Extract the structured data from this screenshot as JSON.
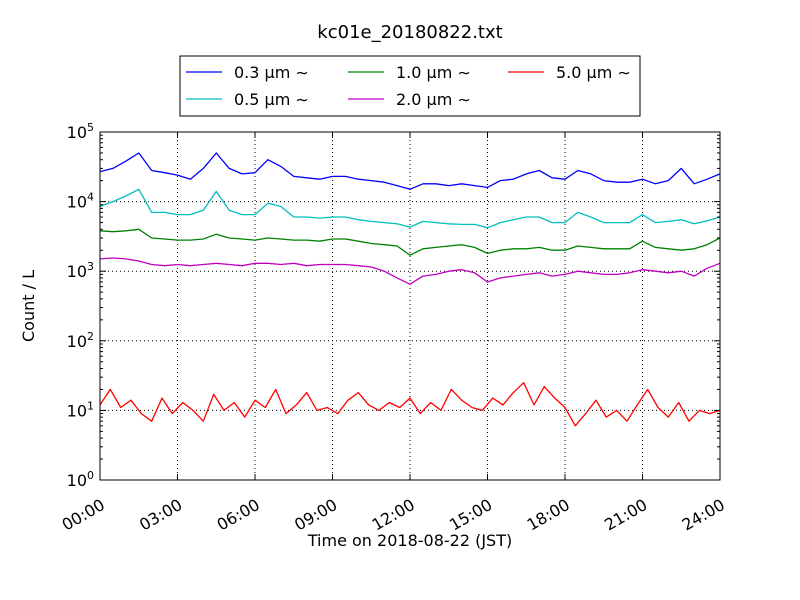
{
  "chart_data": {
    "type": "line",
    "title": "kc01e_20180822.txt",
    "xlabel": "Time on 2018-08-22 (JST)",
    "ylabel": "Count / L",
    "x_ticks": [
      "00:00",
      "03:00",
      "06:00",
      "09:00",
      "12:00",
      "15:00",
      "18:00",
      "21:00",
      "24:00"
    ],
    "x_range_hours": [
      0,
      24
    ],
    "y_scale": "log",
    "y_range": [
      1,
      100000
    ],
    "y_ticks": [
      {
        "base": "10",
        "exp": "0",
        "value": 1
      },
      {
        "base": "10",
        "exp": "1",
        "value": 10
      },
      {
        "base": "10",
        "exp": "2",
        "value": 100
      },
      {
        "base": "10",
        "exp": "3",
        "value": 1000
      },
      {
        "base": "10",
        "exp": "4",
        "value": 10000
      },
      {
        "base": "10",
        "exp": "5",
        "value": 100000
      }
    ],
    "grid": true,
    "legend_placement": "top-center, above plot",
    "series": [
      {
        "name": "0.3 μm ∼",
        "color": "#0000ff",
        "times_h": [
          0.0,
          0.5,
          1.0,
          1.5,
          2.0,
          2.5,
          3.0,
          3.5,
          4.0,
          4.5,
          5.0,
          5.5,
          6.0,
          6.5,
          7.0,
          7.5,
          8.0,
          8.5,
          9.0,
          9.5,
          10.0,
          10.5,
          11.0,
          11.5,
          12.0,
          12.5,
          13.0,
          13.5,
          14.0,
          14.5,
          15.0,
          15.5,
          16.0,
          16.5,
          17.0,
          17.5,
          18.0,
          18.5,
          19.0,
          19.5,
          20.0,
          20.5,
          21.0,
          21.5,
          22.0,
          22.5,
          23.0,
          23.5,
          24.0
        ],
        "values": [
          27000,
          30000,
          38000,
          50000,
          28000,
          26000,
          24000,
          21000,
          30000,
          50000,
          30000,
          25000,
          26000,
          40000,
          32000,
          23000,
          22000,
          21000,
          23000,
          23000,
          21000,
          20000,
          19000,
          17000,
          15000,
          18000,
          18000,
          17000,
          18000,
          17000,
          16000,
          20000,
          21000,
          25000,
          28000,
          22000,
          21000,
          28000,
          25000,
          20000,
          19000,
          19000,
          21000,
          18000,
          20000,
          30000,
          18000,
          21000,
          25000
        ]
      },
      {
        "name": "0.5 μm ∼",
        "color": "#00bfbf",
        "times_h": [
          0.0,
          0.5,
          1.0,
          1.5,
          2.0,
          2.5,
          3.0,
          3.5,
          4.0,
          4.5,
          5.0,
          5.5,
          6.0,
          6.5,
          7.0,
          7.5,
          8.0,
          8.5,
          9.0,
          9.5,
          10.0,
          10.5,
          11.0,
          11.5,
          12.0,
          12.5,
          13.0,
          13.5,
          14.0,
          14.5,
          15.0,
          15.5,
          16.0,
          16.5,
          17.0,
          17.5,
          18.0,
          18.5,
          19.0,
          19.5,
          20.0,
          20.5,
          21.0,
          21.5,
          22.0,
          22.5,
          23.0,
          23.5,
          24.0
        ],
        "values": [
          8500,
          10000,
          12000,
          15000,
          7000,
          7000,
          6500,
          6500,
          7500,
          14000,
          7500,
          6500,
          6500,
          9500,
          8500,
          6000,
          6000,
          5800,
          6000,
          6000,
          5500,
          5200,
          5000,
          4800,
          4300,
          5200,
          5000,
          4800,
          4700,
          4700,
          4200,
          5000,
          5500,
          6000,
          6000,
          5000,
          5000,
          7000,
          6000,
          5000,
          5000,
          5000,
          6500,
          5000,
          5200,
          5500,
          4800,
          5300,
          6000
        ]
      },
      {
        "name": "1.0 μm ∼",
        "color": "#008000",
        "times_h": [
          0.0,
          0.5,
          1.0,
          1.5,
          2.0,
          2.5,
          3.0,
          3.5,
          4.0,
          4.5,
          5.0,
          5.5,
          6.0,
          6.5,
          7.0,
          7.5,
          8.0,
          8.5,
          9.0,
          9.5,
          10.0,
          10.5,
          11.0,
          11.5,
          12.0,
          12.5,
          13.0,
          13.5,
          14.0,
          14.5,
          15.0,
          15.5,
          16.0,
          16.5,
          17.0,
          17.5,
          18.0,
          18.5,
          19.0,
          19.5,
          20.0,
          20.5,
          21.0,
          21.5,
          22.0,
          22.5,
          23.0,
          23.5,
          24.0
        ],
        "values": [
          3800,
          3700,
          3800,
          4000,
          3000,
          2900,
          2800,
          2800,
          2900,
          3400,
          3000,
          2900,
          2800,
          3000,
          2900,
          2800,
          2800,
          2700,
          2900,
          2900,
          2700,
          2500,
          2400,
          2300,
          1700,
          2100,
          2200,
          2300,
          2400,
          2200,
          1800,
          2000,
          2100,
          2100,
          2200,
          2000,
          2000,
          2300,
          2200,
          2100,
          2100,
          2100,
          2700,
          2200,
          2100,
          2000,
          2100,
          2400,
          3000
        ]
      },
      {
        "name": "2.0 μm ∼",
        "color": "#bf00bf",
        "times_h": [
          0.0,
          0.5,
          1.0,
          1.5,
          2.0,
          2.5,
          3.0,
          3.5,
          4.0,
          4.5,
          5.0,
          5.5,
          6.0,
          6.5,
          7.0,
          7.5,
          8.0,
          8.5,
          9.0,
          9.5,
          10.0,
          10.5,
          11.0,
          11.5,
          12.0,
          12.5,
          13.0,
          13.5,
          14.0,
          14.5,
          15.0,
          15.5,
          16.0,
          16.5,
          17.0,
          17.5,
          18.0,
          18.5,
          19.0,
          19.5,
          20.0,
          20.5,
          21.0,
          21.5,
          22.0,
          22.5,
          23.0,
          23.5,
          24.0
        ],
        "values": [
          1500,
          1550,
          1500,
          1400,
          1250,
          1200,
          1250,
          1200,
          1250,
          1300,
          1250,
          1200,
          1300,
          1300,
          1250,
          1300,
          1200,
          1250,
          1250,
          1250,
          1200,
          1150,
          1000,
          800,
          650,
          850,
          900,
          1000,
          1050,
          950,
          700,
          800,
          850,
          900,
          950,
          850,
          900,
          1000,
          950,
          900,
          900,
          950,
          1050,
          1000,
          950,
          1000,
          850,
          1100,
          1300
        ]
      },
      {
        "name": "5.0 μm ∼",
        "color": "#ff0000",
        "times_h": [
          0.0,
          0.4,
          0.8,
          1.2,
          1.6,
          2.0,
          2.4,
          2.8,
          3.2,
          3.6,
          4.0,
          4.4,
          4.8,
          5.2,
          5.6,
          6.0,
          6.4,
          6.8,
          7.2,
          7.6,
          8.0,
          8.4,
          8.8,
          9.2,
          9.6,
          10.0,
          10.4,
          10.8,
          11.2,
          11.6,
          12.0,
          12.4,
          12.8,
          13.2,
          13.6,
          14.0,
          14.4,
          14.8,
          15.2,
          15.6,
          16.0,
          16.4,
          16.8,
          17.2,
          17.6,
          18.0,
          18.4,
          18.8,
          19.2,
          19.6,
          20.0,
          20.4,
          20.8,
          21.2,
          21.6,
          22.0,
          22.4,
          22.8,
          23.2,
          23.6,
          24.0
        ],
        "values": [
          12,
          20,
          11,
          14,
          9,
          7,
          15,
          9,
          13,
          10,
          7,
          17,
          10,
          13,
          8,
          14,
          11,
          20,
          9,
          12,
          18,
          10,
          11,
          9,
          14,
          18,
          12,
          10,
          13,
          11,
          15,
          9,
          13,
          10,
          20,
          14,
          11,
          10,
          15,
          12,
          18,
          25,
          12,
          22,
          15,
          11,
          6,
          9,
          14,
          8,
          10,
          7,
          12,
          20,
          11,
          8,
          13,
          7,
          10,
          9,
          10
        ]
      }
    ]
  }
}
